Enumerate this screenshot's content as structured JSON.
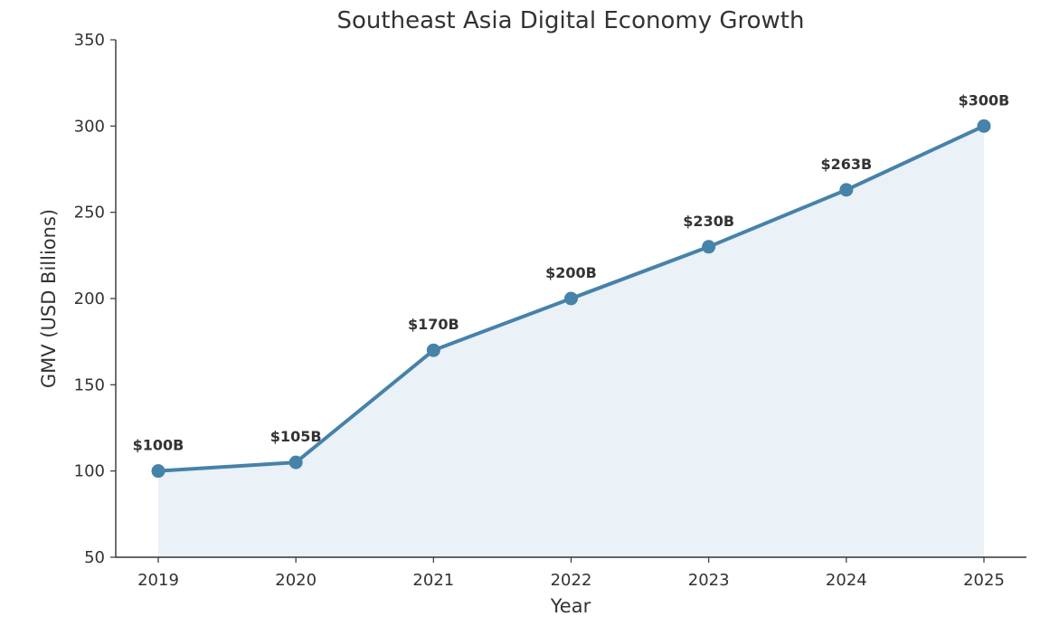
{
  "chart_data": {
    "type": "area",
    "title": "Southeast Asia Digital Economy Growth",
    "xlabel": "Year",
    "ylabel": "GMV (USD Billions)",
    "categories": [
      "2019",
      "2020",
      "2021",
      "2022",
      "2023",
      "2024",
      "2025"
    ],
    "series": [
      {
        "values": [
          100,
          105,
          170,
          200,
          230,
          263,
          300
        ],
        "labels": [
          "$100B",
          "$105B",
          "$170B",
          "$200B",
          "$230B",
          "$263B",
          "$300B"
        ]
      }
    ],
    "ylim": [
      50,
      350
    ],
    "yticks": [
      50,
      100,
      150,
      200,
      250,
      300,
      350
    ],
    "grid": false,
    "legend": "none",
    "colors": {
      "line": "#4682a9",
      "marker": "#4682a9",
      "fill": "#dfe9f3",
      "text": "#333333"
    }
  }
}
